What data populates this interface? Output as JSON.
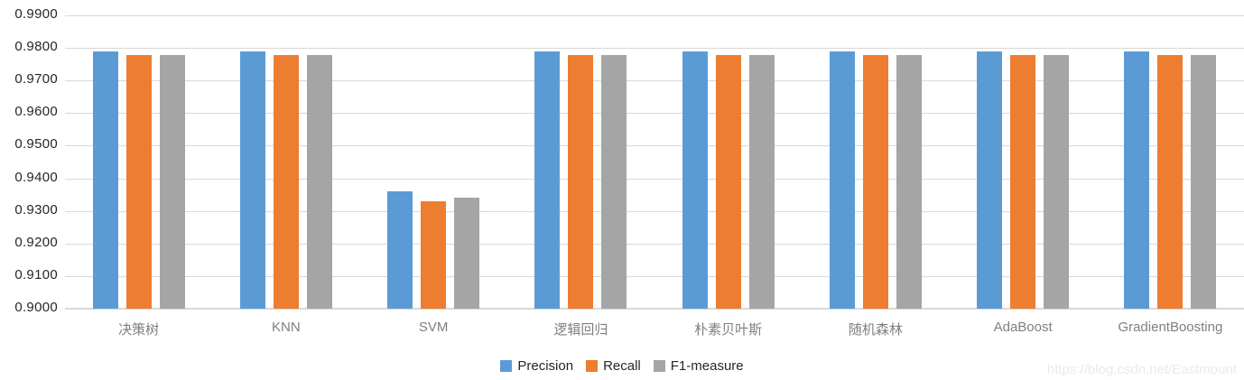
{
  "chart_data": {
    "type": "bar",
    "title": "",
    "xlabel": "",
    "ylabel": "",
    "categories": [
      "决策树",
      "KNN",
      "SVM",
      "逻辑回归",
      "朴素贝叶斯",
      "随机森林",
      "AdaBoost",
      "GradientBoosting"
    ],
    "series": [
      {
        "name": "Precision",
        "color": "#5b9bd5",
        "values": [
          0.979,
          0.979,
          0.936,
          0.979,
          0.979,
          0.979,
          0.979,
          0.979
        ]
      },
      {
        "name": "Recall",
        "color": "#ed7d31",
        "values": [
          0.9778,
          0.9778,
          0.933,
          0.9778,
          0.9778,
          0.9778,
          0.9778,
          0.9778
        ]
      },
      {
        "name": "F1-measure",
        "color": "#a5a5a5",
        "values": [
          0.9778,
          0.9778,
          0.934,
          0.9778,
          0.9778,
          0.9778,
          0.9778,
          0.9778
        ]
      }
    ],
    "ylim": [
      0.9,
      0.99
    ],
    "ytick_step": 0.01,
    "ytick_labels": [
      "0.9000",
      "0.9100",
      "0.9200",
      "0.9300",
      "0.9400",
      "0.9500",
      "0.9600",
      "0.9700",
      "0.9800",
      "0.9900"
    ],
    "grid": true,
    "legend_position": "bottom-center"
  },
  "colors": {
    "gridline": "#d9d9d9",
    "axis_line": "#d9d9d9",
    "ytick_text": "#262626",
    "xtick_text": "#7f7f7f",
    "legend_text": "#262626",
    "watermark_text": "#eaeaea",
    "background": "#ffffff"
  },
  "watermark": "https://blog.csdn.net/Eastmount"
}
